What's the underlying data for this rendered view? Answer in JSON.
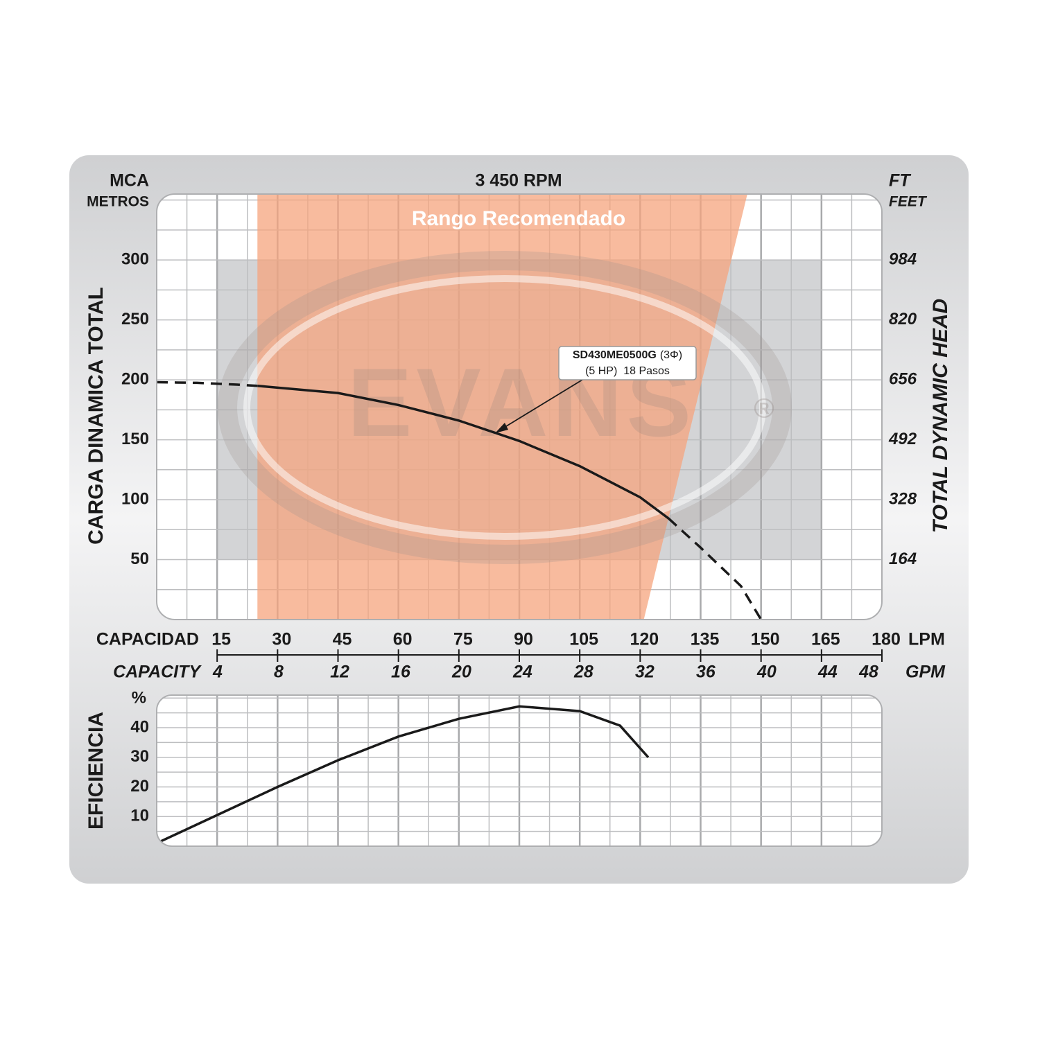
{
  "chart_data": [
    {
      "type": "line",
      "title": "3 450 RPM",
      "y_unit": "MCA",
      "y_unit_sub": "METROS",
      "y2_unit": "FT",
      "y2_unit_sub": "FEET",
      "ylabel": "CARGA  DINAMICA  TOTAL",
      "y2label": "TOTAL  DYNAMIC  HEAD",
      "xlabel": "CAPACIDAD",
      "x_unit": "LPM",
      "x2label": "CAPACITY",
      "x2_unit": "GPM",
      "xlim": [
        0,
        180
      ],
      "xticks": [
        15,
        30,
        45,
        60,
        75,
        90,
        105,
        120,
        135,
        150,
        165,
        180
      ],
      "x2lim": [
        0,
        47.55
      ],
      "x2ticks": [
        4,
        8,
        12,
        16,
        20,
        24,
        28,
        32,
        36,
        40,
        44,
        48
      ],
      "ylim": [
        0,
        355
      ],
      "yticks": [
        50,
        100,
        150,
        200,
        250,
        300
      ],
      "y2lim": [
        0,
        1165
      ],
      "y2ticks": [
        164,
        328,
        492,
        656,
        820,
        984
      ],
      "xgrid": [
        7.5,
        15,
        22.5,
        30,
        37.5,
        45,
        52.5,
        60,
        67.5,
        75,
        82.5,
        90,
        97.5,
        105,
        112.5,
        120,
        127.5,
        135,
        142.5,
        150,
        157.5,
        165,
        172.5
      ],
      "ygrid": [
        25,
        50,
        75,
        100,
        125,
        150,
        175,
        200,
        225,
        250,
        275,
        300,
        325,
        350
      ],
      "recommended_range": {
        "label": "Rango Recomendado",
        "color": "#f6a47d",
        "x_top": [
          25,
          146.6
        ],
        "x_bottom": [
          25,
          120.9
        ]
      },
      "gray_zone": {
        "x": [
          15,
          165
        ],
        "y": [
          50,
          300
        ],
        "color": "#d3d4d6"
      },
      "watermark": {
        "text": "EVANS",
        "mark": "®"
      },
      "annotation": {
        "label_bold": "SD430ME0500G",
        "label_rest": "(3Φ)",
        "label_line2": "(5 HP)  18 Pasos"
      },
      "series": [
        {
          "style": "dashed",
          "color": "#1a1a1a",
          "x": [
            0,
            10,
            20,
            25
          ],
          "values": [
            198,
            197.5,
            196,
            195
          ]
        },
        {
          "style": "solid",
          "color": "#1a1a1a",
          "x": [
            25,
            45,
            60,
            75,
            90,
            105,
            120,
            127
          ],
          "values": [
            195,
            189,
            179,
            166,
            149,
            128,
            102,
            84.5
          ]
        },
        {
          "style": "dashed",
          "color": "#1a1a1a",
          "x": [
            127,
            135,
            145,
            150
          ],
          "values": [
            84.5,
            60,
            28,
            0
          ]
        }
      ]
    },
    {
      "type": "line",
      "ylabel": "EFICIENCIA",
      "y_unit": "%",
      "xlim": [
        0,
        180
      ],
      "ylim": [
        0,
        51
      ],
      "yticks": [
        10,
        20,
        30,
        40
      ],
      "xgrid": [
        7.5,
        15,
        22.5,
        30,
        37.5,
        45,
        52.5,
        60,
        67.5,
        75,
        82.5,
        90,
        97.5,
        105,
        112.5,
        120,
        127.5,
        135,
        142.5,
        150,
        157.5,
        165,
        172.5
      ],
      "ygrid": [
        5,
        10,
        15,
        20,
        25,
        30,
        35,
        40,
        45,
        50
      ],
      "series": [
        {
          "style": "solid",
          "color": "#1a1a1a",
          "x": [
            0,
            15,
            30,
            45,
            60,
            75,
            90,
            105,
            115,
            122
          ],
          "values": [
            1,
            10.5,
            20,
            29,
            37,
            43,
            47.2,
            45.6,
            40.7,
            30
          ]
        }
      ]
    }
  ]
}
